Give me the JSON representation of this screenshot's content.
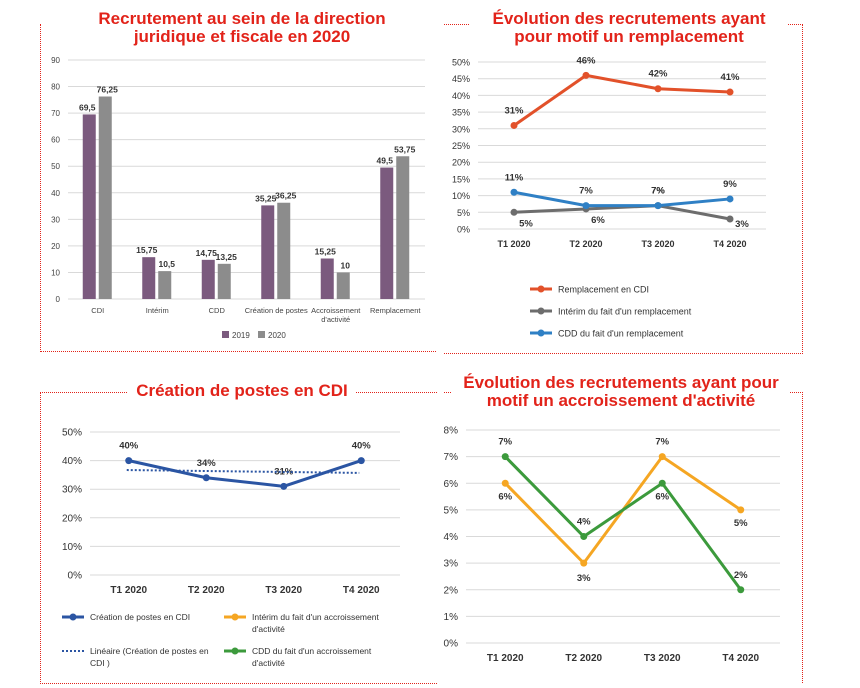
{
  "colors": {
    "frame": "#e2231a",
    "bar2019": "#7b5a7e",
    "bar2020": "#8c8c8c",
    "orange_red": "#e2512a",
    "gray": "#6d6d6d",
    "blue": "#2f80c5",
    "dark_blue": "#2b55a3",
    "yellow": "#f5a623",
    "green": "#3c9a3c"
  },
  "chart_data": [
    {
      "type": "bar",
      "title": "Recrutement au sein de la direction juridique et fiscale en 2020",
      "categories": [
        "CDI",
        "Intérim",
        "CDD",
        "Création de postes",
        "Accroissement d'activité",
        "Remplacement"
      ],
      "series": [
        {
          "name": "2019",
          "values": [
            69.5,
            15.75,
            14.75,
            35.25,
            15.25,
            49.5
          ],
          "labels": [
            "69,5",
            "15,75",
            "14,75",
            "35,25",
            "15,25",
            "49,5"
          ]
        },
        {
          "name": "2020",
          "values": [
            76.25,
            10.5,
            13.25,
            36.25,
            10,
            53.75
          ],
          "labels": [
            "76,25",
            "10,5",
            "13,25",
            "36,25",
            "10",
            "53,75"
          ]
        }
      ],
      "ylim": [
        0,
        90
      ],
      "yticks": [
        "0",
        "10",
        "20",
        "30",
        "40",
        "50",
        "60",
        "70",
        "80",
        "90"
      ],
      "grid": true,
      "legend_position": "bottom"
    },
    {
      "type": "line",
      "title": "Évolution des recrutements ayant pour motif un remplacement",
      "categories": [
        "T1 2020",
        "T2 2020",
        "T3 2020",
        "T4 2020"
      ],
      "series": [
        {
          "name": "Remplacement en CDI",
          "values": [
            31,
            46,
            42,
            41
          ],
          "labels": [
            "31%",
            "46%",
            "42%",
            "41%"
          ]
        },
        {
          "name": "Intérim du fait d'un remplacement",
          "values": [
            5,
            6,
            7,
            3
          ],
          "labels": [
            "5%",
            "6%",
            "7%",
            "3%"
          ]
        },
        {
          "name": "CDD du fait d'un remplacement",
          "values": [
            11,
            7,
            7,
            9
          ],
          "labels": [
            "11%",
            "7%",
            "7%",
            "9%"
          ]
        }
      ],
      "ylim": [
        0,
        50
      ],
      "yticks": [
        "0%",
        "5%",
        "10%",
        "15%",
        "20%",
        "25%",
        "30%",
        "35%",
        "40%",
        "45%",
        "50%"
      ],
      "grid": true,
      "legend_position": "bottom"
    },
    {
      "type": "line",
      "title": "Création de postes en CDI",
      "categories": [
        "T1 2020",
        "T2 2020",
        "T3 2020",
        "T4 2020"
      ],
      "series": [
        {
          "name": "Création de postes en CDI",
          "values": [
            40,
            34,
            31,
            40
          ],
          "labels": [
            "40%",
            "34%",
            "31%",
            "40%"
          ]
        },
        {
          "name": "Linéaire (Création de postes en CDI )",
          "trendline": true,
          "values": [
            36.7,
            36.4,
            36.0,
            35.7
          ]
        }
      ],
      "ylim": [
        0,
        50
      ],
      "yticks": [
        "0%",
        "10%",
        "20%",
        "30%",
        "40%",
        "50%"
      ],
      "grid": true,
      "legend_position": "bottom"
    },
    {
      "type": "line",
      "title": "Évolution des recrutements ayant pour motif un accroissement d'activité",
      "categories": [
        "T1 2020",
        "T2 2020",
        "T3 2020",
        "T4 2020"
      ],
      "series": [
        {
          "name": "Intérim du fait d'un accroissement d'activité",
          "values": [
            6,
            3,
            7,
            5
          ],
          "labels": [
            "6%",
            "3%",
            "7%",
            "5%"
          ]
        },
        {
          "name": "CDD du fait d'un accroissement d'activité",
          "values": [
            7,
            4,
            6,
            2
          ],
          "labels": [
            "7%",
            "4%",
            "6%",
            "2%"
          ]
        }
      ],
      "ylim": [
        0,
        8
      ],
      "yticks": [
        "0%",
        "1%",
        "2%",
        "3%",
        "4%",
        "5%",
        "6%",
        "7%",
        "8%"
      ],
      "grid": true,
      "legend_position": "bottom"
    }
  ]
}
